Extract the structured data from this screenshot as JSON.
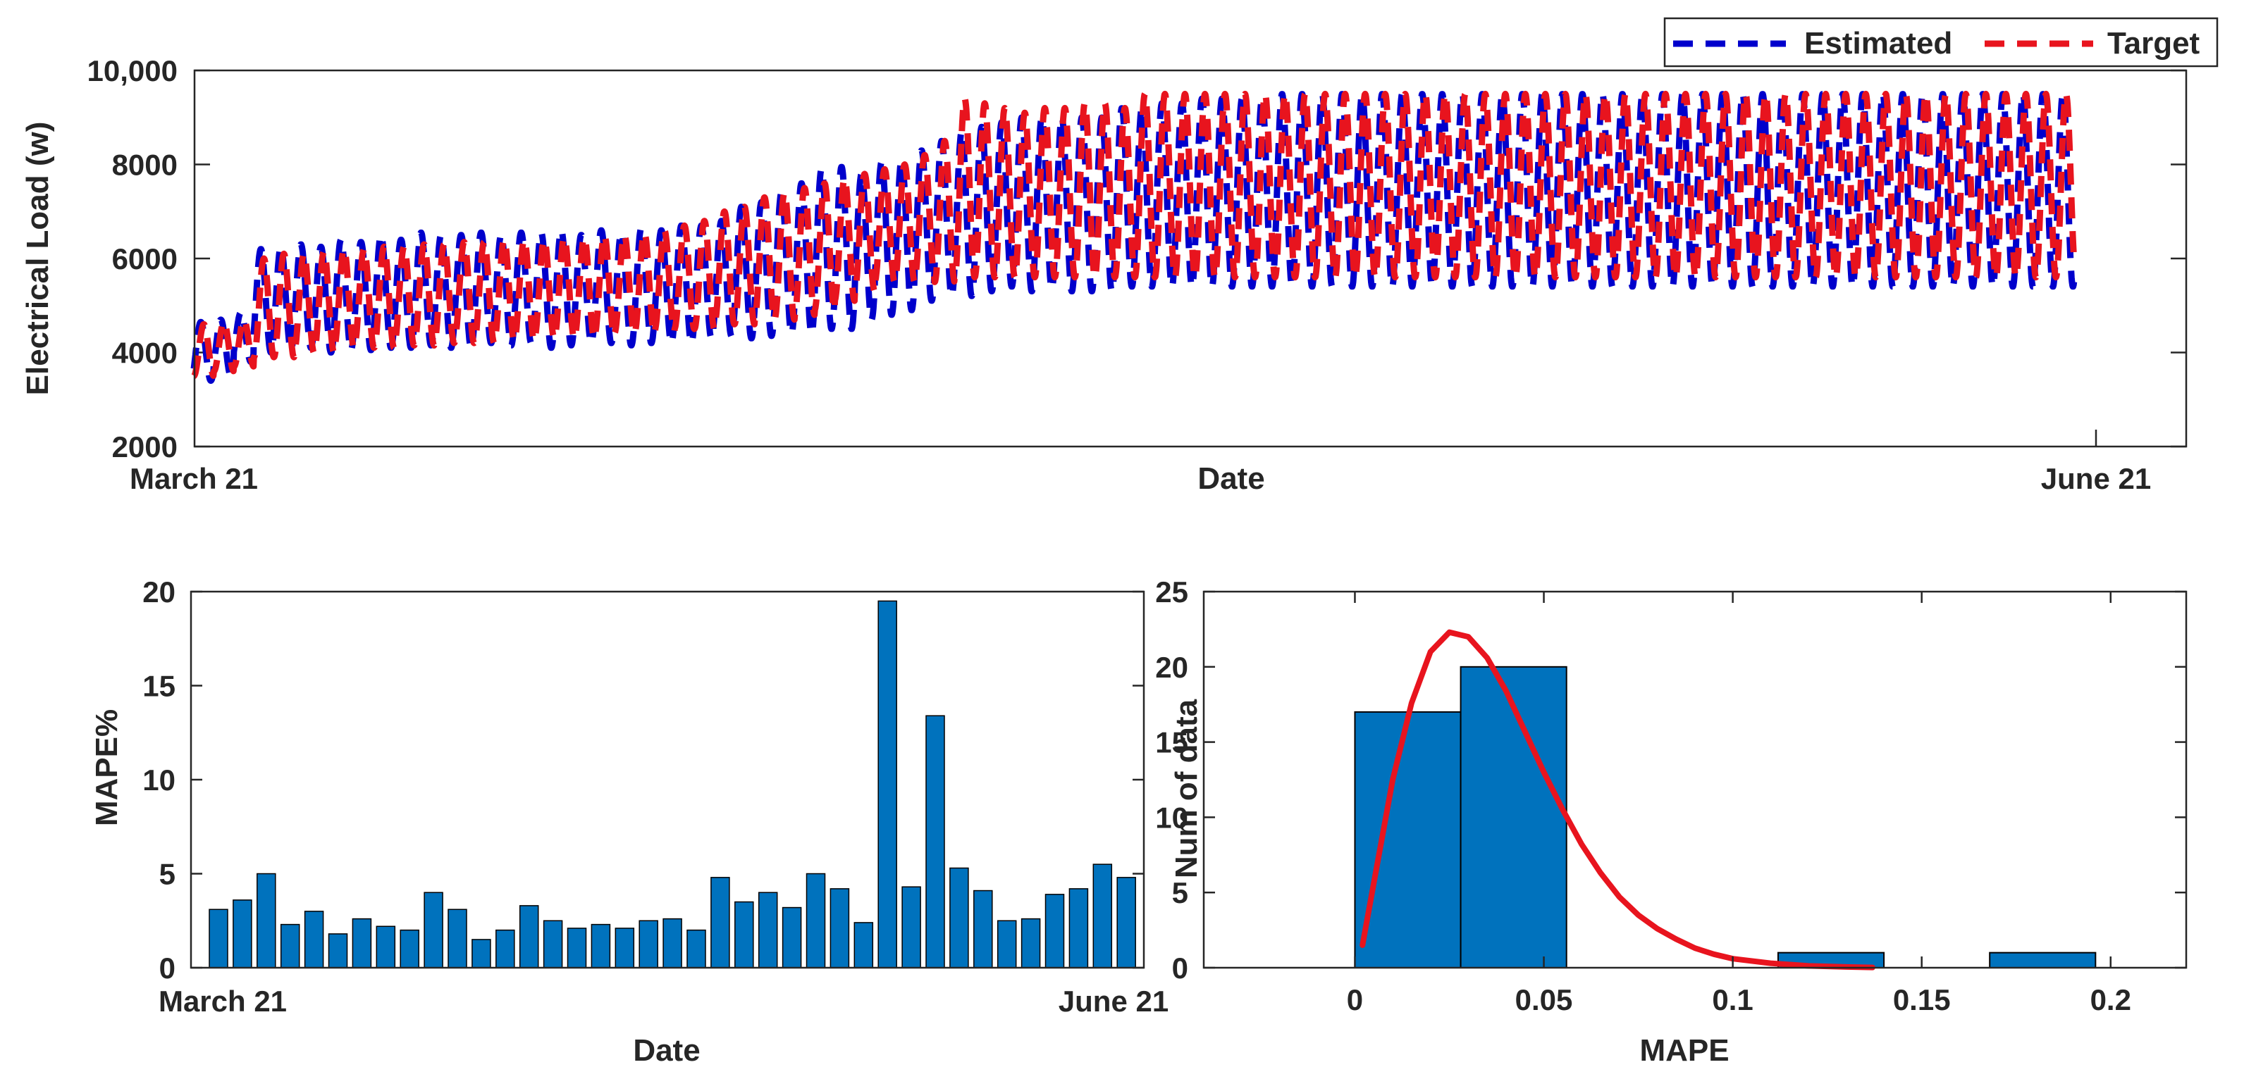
{
  "chart_data": [
    {
      "type": "line",
      "title": "",
      "xlabel": "Date",
      "ylabel": "Electrical Load (w)",
      "ylim": [
        2000,
        10000
      ],
      "yticks": [
        2000,
        4000,
        6000,
        8000,
        10000
      ],
      "ytick_labels": [
        "2000",
        "4000",
        "6000",
        "8000",
        "10,000"
      ],
      "x_tick_labels": [
        "March 21",
        "June 21"
      ],
      "x_range_days": [
        0,
        95
      ],
      "legend_position": "top-right",
      "series": [
        {
          "name": "Estimated",
          "color": "#0000cc",
          "style": "dashed",
          "period_days": 1,
          "phase_days": 0.1,
          "daily_max": [
            4650,
            4700,
            4850,
            6200,
            6250,
            6300,
            6250,
            6400,
            6350,
            6500,
            6400,
            6550,
            6500,
            6500,
            6550,
            6500,
            6550,
            6550,
            6600,
            6500,
            6600,
            6550,
            6650,
            6600,
            6700,
            6700,
            6800,
            7100,
            7200,
            7400,
            7600,
            7900,
            7950,
            7800,
            8050,
            8100,
            8300,
            8500,
            8700,
            8800,
            8900,
            9000,
            9000,
            9000,
            9000,
            9000,
            9200,
            9200,
            9300,
            9300,
            9400,
            9400,
            9400,
            9400,
            9500,
            9500,
            9500,
            9500,
            9500,
            9500,
            9500,
            9500,
            9500,
            9500,
            9500,
            9500,
            9500,
            9500,
            9500,
            9500,
            9500,
            9500,
            9500,
            9500,
            9500,
            9500,
            9500,
            9500,
            9500,
            9500,
            9500,
            9500,
            9500,
            9500,
            9500,
            9500,
            9500,
            9500,
            9500,
            9500,
            9500,
            9500,
            9500,
            9500,
            9500,
            9500
          ],
          "daily_min": [
            3400,
            3500,
            3800,
            4000,
            4050,
            4100,
            4000,
            4050,
            4050,
            4100,
            4100,
            4150,
            4100,
            4100,
            4200,
            4150,
            4200,
            4100,
            4150,
            4200,
            4200,
            4150,
            4200,
            4200,
            4200,
            4300,
            4350,
            4300,
            4350,
            4400,
            4400,
            4500,
            4500,
            4700,
            4800,
            4900,
            5100,
            5200,
            5200,
            5300,
            5400,
            5300,
            5350,
            5300,
            5300,
            5300,
            5400,
            5400,
            5400,
            5400,
            5400,
            5400,
            5400,
            5400,
            5400,
            5400,
            5400,
            5400,
            5400,
            5400,
            5400,
            5400,
            5400,
            5400,
            5400,
            5400,
            5400,
            5400,
            5400,
            5400,
            5400,
            5400,
            5400,
            5400,
            5400,
            5400,
            5400,
            5400,
            5400,
            5400,
            5400,
            5400,
            5400,
            5400,
            5400,
            5400,
            5400,
            5400,
            5400,
            5400,
            5400,
            5400,
            5400,
            5400,
            5400,
            5400
          ]
        },
        {
          "name": "Target",
          "color": "#e8141e",
          "style": "dashed",
          "period_days": 1,
          "phase_days": 0.25,
          "daily_max": [
            4600,
            4650,
            4700,
            6000,
            6100,
            6100,
            6150,
            6200,
            6200,
            6250,
            6250,
            6300,
            6300,
            6350,
            6350,
            6400,
            6400,
            6400,
            6450,
            6450,
            6500,
            6500,
            6550,
            6600,
            6700,
            6800,
            7000,
            7100,
            7300,
            7400,
            7500,
            7600,
            7700,
            7800,
            7900,
            8000,
            8200,
            8500,
            9400,
            9300,
            9200,
            9100,
            9200,
            9200,
            9300,
            9300,
            9200,
            9500,
            9500,
            9500,
            9500,
            9500,
            9500,
            9500,
            9500,
            9500,
            9500,
            9500,
            9500,
            9500,
            9500,
            9500,
            9500,
            9500,
            9500,
            9500,
            9500,
            9500,
            9500,
            9500,
            9500,
            9500,
            9500,
            9500,
            9500,
            9500,
            9500,
            9500,
            9500,
            9500,
            9500,
            9500,
            9500,
            9500,
            9500,
            9500,
            9500,
            9500,
            9500,
            9500,
            9500,
            9500,
            9500,
            9500,
            9500,
            9500
          ],
          "daily_min": [
            3500,
            3600,
            3700,
            3900,
            3900,
            4000,
            4000,
            4100,
            4100,
            4100,
            4150,
            4150,
            4200,
            4200,
            4200,
            4250,
            4250,
            4300,
            4300,
            4300,
            4350,
            4400,
            4400,
            4450,
            4500,
            4500,
            4600,
            4600,
            4700,
            4700,
            4800,
            4900,
            5100,
            5300,
            5500,
            5500,
            5600,
            5500,
            5600,
            5600,
            5600,
            5600,
            5600,
            5600,
            5600,
            5600,
            5600,
            5600,
            5600,
            5600,
            5600,
            5600,
            5600,
            5600,
            5600,
            5600,
            5600,
            5600,
            5600,
            5600,
            5600,
            5600,
            5600,
            5600,
            5600,
            5600,
            5600,
            5600,
            5600,
            5600,
            5600,
            5600,
            5600,
            5600,
            5600,
            5600,
            5600,
            5600,
            5600,
            5600,
            5600,
            5600,
            5600,
            5600,
            5600,
            5600,
            5600,
            5600,
            5600,
            5600,
            5600,
            5600,
            5600,
            5600,
            5600,
            5600
          ]
        }
      ]
    },
    {
      "type": "bar",
      "title": "",
      "xlabel": "Date",
      "ylabel": "MAPE%",
      "ylim": [
        0,
        20
      ],
      "yticks": [
        0,
        5,
        10,
        15,
        20
      ],
      "x_tick_labels": [
        "March 21",
        "June 21"
      ],
      "bar_color": "#0072bd",
      "values": [
        3.1,
        3.6,
        5.0,
        2.3,
        3.0,
        1.8,
        2.6,
        2.2,
        2.0,
        4.0,
        3.1,
        1.5,
        2.0,
        3.3,
        2.5,
        2.1,
        2.3,
        2.1,
        2.5,
        2.6,
        2.0,
        4.8,
        3.5,
        4.0,
        3.2,
        5.0,
        4.2,
        2.4,
        19.5,
        4.3,
        13.4,
        5.3,
        4.1,
        2.5,
        2.6,
        3.9,
        4.2,
        5.5,
        4.8
      ]
    },
    {
      "type": "histogram",
      "title": "",
      "xlabel": "MAPE",
      "ylabel": "Num of data",
      "xlim": [
        -0.04,
        0.22
      ],
      "ylim": [
        0,
        25
      ],
      "xticks": [
        0,
        0.05,
        0.1,
        0.15,
        0.2
      ],
      "xtick_labels": [
        "0",
        "0.05",
        "0.1",
        "0.15",
        "0.2"
      ],
      "yticks": [
        0,
        5,
        10,
        15,
        20,
        25
      ],
      "bar_color": "#0072bd",
      "bins": [
        {
          "from": 0.0,
          "to": 0.028,
          "count": 17
        },
        {
          "from": 0.028,
          "to": 0.056,
          "count": 20
        },
        {
          "from": 0.112,
          "to": 0.14,
          "count": 1
        },
        {
          "from": 0.168,
          "to": 0.196,
          "count": 1
        }
      ],
      "fit_curve": {
        "color": "#e8141e",
        "points": [
          [
            0.002,
            1.5
          ],
          [
            0.006,
            7.0
          ],
          [
            0.01,
            12.5
          ],
          [
            0.015,
            17.6
          ],
          [
            0.02,
            21.0
          ],
          [
            0.025,
            22.3
          ],
          [
            0.03,
            22.0
          ],
          [
            0.035,
            20.6
          ],
          [
            0.04,
            18.4
          ],
          [
            0.045,
            15.7
          ],
          [
            0.05,
            13.0
          ],
          [
            0.055,
            10.5
          ],
          [
            0.06,
            8.2
          ],
          [
            0.065,
            6.3
          ],
          [
            0.07,
            4.7
          ],
          [
            0.075,
            3.5
          ],
          [
            0.08,
            2.6
          ],
          [
            0.085,
            1.9
          ],
          [
            0.09,
            1.3
          ],
          [
            0.095,
            0.9
          ],
          [
            0.1,
            0.6
          ],
          [
            0.11,
            0.3
          ],
          [
            0.12,
            0.12
          ],
          [
            0.13,
            0.05
          ],
          [
            0.137,
            0.02
          ]
        ]
      }
    }
  ]
}
